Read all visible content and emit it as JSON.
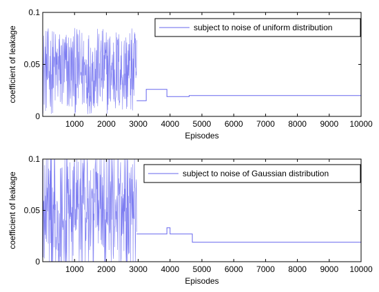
{
  "chart_data": [
    {
      "type": "line",
      "xlabel": "Episodes",
      "ylabel": "coefficient of leakage",
      "xlim": [
        0,
        10000
      ],
      "ylim": [
        0,
        0.1
      ],
      "x_ticks": [
        1000,
        2000,
        3000,
        4000,
        5000,
        6000,
        7000,
        8000,
        9000,
        10000
      ],
      "x_tick_labels": [
        "1000",
        "2000",
        "3000",
        "4000",
        "5000",
        "6000",
        "7000",
        "8000",
        "9000",
        "10000"
      ],
      "y_ticks": [
        0,
        0.05,
        0.1
      ],
      "y_tick_labels": [
        "0",
        "0.05",
        "0.1"
      ],
      "legend_position": "top-right",
      "grid": false,
      "color": "#6666ee",
      "series": [
        {
          "name": "subject to noise of uniform distribution",
          "noisy_segment": {
            "x_range": [
              0,
              2950
            ],
            "value_range": [
              0.002,
              0.085
            ]
          },
          "steps": [
            {
              "x": [
                2950,
                3250
              ],
              "y": 0.015
            },
            {
              "x": [
                3250,
                3900
              ],
              "y": 0.026
            },
            {
              "x": [
                3900,
                4600
              ],
              "y": 0.019
            },
            {
              "x": [
                4600,
                10000
              ],
              "y": 0.02
            }
          ]
        }
      ]
    },
    {
      "type": "line",
      "xlabel": "Episodes",
      "ylabel": "coefficient of leakage",
      "xlim": [
        0,
        10000
      ],
      "ylim": [
        0,
        0.1
      ],
      "x_ticks": [
        1000,
        2000,
        3000,
        4000,
        5000,
        6000,
        7000,
        8000,
        9000,
        10000
      ],
      "x_tick_labels": [
        "1000",
        "2000",
        "3000",
        "4000",
        "5000",
        "6000",
        "7000",
        "8000",
        "9000",
        "10000"
      ],
      "y_ticks": [
        0,
        0.05,
        0.1
      ],
      "y_tick_labels": [
        "0",
        "0.05",
        "0.1"
      ],
      "legend_position": "top-right",
      "grid": false,
      "color": "#6666ee",
      "series": [
        {
          "name": "subject to noise of Gaussian distribution",
          "noisy_segment": {
            "x_range": [
              0,
              2950
            ],
            "value_range": [
              0.0,
              0.1
            ]
          },
          "steps": [
            {
              "x": [
                2950,
                3900
              ],
              "y": 0.027
            },
            {
              "x": [
                3900,
                4000
              ],
              "y": 0.033
            },
            {
              "x": [
                4000,
                4700
              ],
              "y": 0.027
            },
            {
              "x": [
                4700,
                10000
              ],
              "y": 0.019
            }
          ]
        }
      ]
    }
  ]
}
